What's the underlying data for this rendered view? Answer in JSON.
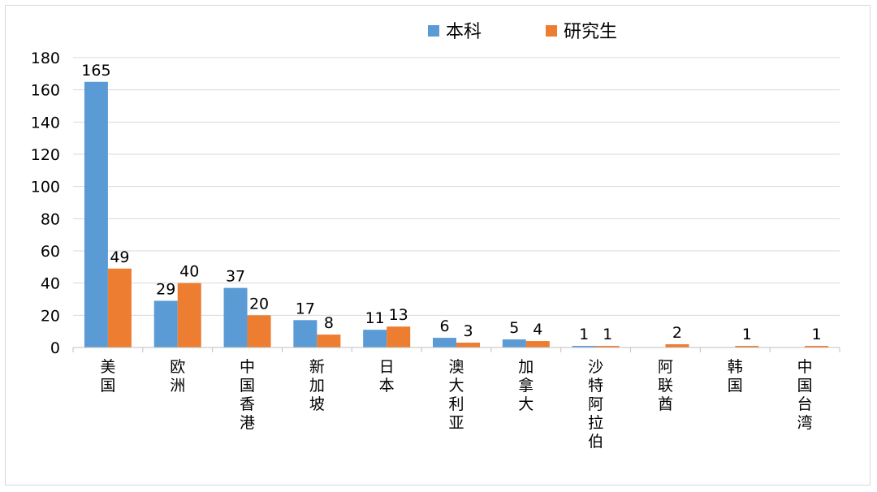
{
  "chart_data": {
    "type": "bar",
    "categories": [
      "美国",
      "欧洲",
      "中国香港",
      "新加坡",
      "日本",
      "澳大利亚",
      "加拿大",
      "沙特阿拉伯",
      "阿联酋",
      "韩国",
      "中国台湾"
    ],
    "series": [
      {
        "name": "本科",
        "color": "#5B9BD5",
        "values": [
          165,
          29,
          37,
          17,
          11,
          6,
          5,
          1,
          0,
          0,
          0
        ],
        "labels": [
          "165",
          "29",
          "37",
          "17",
          "11",
          "6",
          "5",
          "1",
          "",
          "",
          ""
        ]
      },
      {
        "name": "研究生",
        "color": "#ED7D31",
        "values": [
          49,
          40,
          20,
          8,
          13,
          3,
          4,
          1,
          2,
          1,
          1
        ],
        "labels": [
          "49",
          "40",
          "20",
          "8",
          "13",
          "3",
          "4",
          "1",
          "2",
          "1",
          "1"
        ]
      }
    ],
    "ylim": [
      0,
      180
    ],
    "yticks": [
      0,
      20,
      40,
      60,
      80,
      100,
      120,
      140,
      160,
      180
    ],
    "grid": true,
    "legend_position": "top-center"
  }
}
